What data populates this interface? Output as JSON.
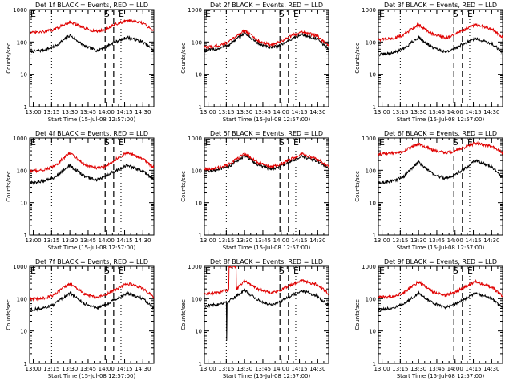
{
  "figure": {
    "xlabel": "Start Time (15-Jul-08 12:57:00)",
    "ylabel": "Counts/sec",
    "event_label": "Events",
    "lld_label": "LLD",
    "legend_prefix_black": "BLACK",
    "legend_prefix_red": "RED",
    "marker_start": "S",
    "marker_end": "E",
    "colors": {
      "events": "#000000",
      "lld": "#e00000",
      "axes": "#000000",
      "background": "#ffffff"
    }
  },
  "chart_data": {
    "type": "line",
    "x_unit": "minutes since 12:57:00",
    "xlim": [
      0,
      102
    ],
    "ylim": [
      1,
      1000
    ],
    "yscale": "log",
    "xticks": [
      3,
      18,
      33,
      48,
      63,
      78,
      93
    ],
    "xtick_labels": [
      "13:00",
      "13:15",
      "13:30",
      "13:45",
      "14:00",
      "14:15",
      "14:30"
    ],
    "yticks": [
      1,
      10,
      100,
      1000
    ],
    "ytick_labels": [
      "1",
      "10",
      "100",
      "1000"
    ],
    "dotted_lines_x": [
      18,
      75
    ],
    "dashed_lines_x": [
      62,
      69
    ],
    "S_x": 63,
    "E_x": 75,
    "panels": [
      {
        "title": "Det 1f BLACK = Events, RED = LLD",
        "series": [
          {
            "name": "Events",
            "x": [
              0,
              10,
              20,
              33,
              45,
              55,
              62,
              69,
              80,
              93,
              102
            ],
            "y": [
              50,
              55,
              70,
              160,
              75,
              55,
              70,
              95,
              140,
              100,
              55
            ]
          },
          {
            "name": "LLD",
            "x": [
              0,
              10,
              20,
              33,
              45,
              55,
              62,
              69,
              80,
              93,
              102
            ],
            "y": [
              190,
              200,
              240,
              420,
              260,
              210,
              240,
              330,
              470,
              380,
              220
            ]
          }
        ]
      },
      {
        "title": "Det 2f BLACK = Events, RED = LLD",
        "series": [
          {
            "name": "Events",
            "x": [
              0,
              10,
              20,
              33,
              45,
              55,
              62,
              69,
              80,
              93,
              102
            ],
            "y": [
              55,
              60,
              80,
              190,
              85,
              65,
              80,
              110,
              170,
              120,
              60
            ]
          },
          {
            "name": "LLD",
            "x": [
              0,
              10,
              20,
              33,
              45,
              55,
              62,
              69,
              80,
              93,
              102
            ],
            "y": [
              68,
              75,
              100,
              230,
              105,
              80,
              100,
              140,
              210,
              150,
              75
            ]
          }
        ]
      },
      {
        "title": "Det 3f BLACK = Events, RED = LLD",
        "series": [
          {
            "name": "Events",
            "x": [
              0,
              10,
              20,
              33,
              45,
              55,
              62,
              69,
              80,
              93,
              102
            ],
            "y": [
              40,
              45,
              60,
              140,
              65,
              48,
              60,
              85,
              130,
              90,
              48
            ]
          },
          {
            "name": "LLD",
            "x": [
              0,
              10,
              20,
              33,
              45,
              55,
              62,
              69,
              80,
              93,
              102
            ],
            "y": [
              120,
              125,
              160,
              350,
              170,
              135,
              160,
              230,
              340,
              250,
              140
            ]
          }
        ]
      },
      {
        "title": "Det 4f BLACK = Events, RED = LLD",
        "series": [
          {
            "name": "Events",
            "x": [
              0,
              10,
              20,
              33,
              45,
              55,
              62,
              69,
              80,
              93,
              102
            ],
            "y": [
              40,
              45,
              60,
              140,
              65,
              50,
              62,
              90,
              140,
              95,
              50
            ]
          },
          {
            "name": "LLD",
            "x": [
              0,
              10,
              20,
              33,
              45,
              55,
              62,
              69,
              80,
              93,
              102
            ],
            "y": [
              95,
              100,
              130,
              350,
              150,
              115,
              130,
              200,
              350,
              230,
              120
            ]
          }
        ]
      },
      {
        "title": "Det 5f BLACK = Events, RED = LLD",
        "series": [
          {
            "name": "Events",
            "x": [
              0,
              10,
              20,
              33,
              45,
              55,
              62,
              69,
              80,
              93,
              102
            ],
            "y": [
              95,
              100,
              130,
              280,
              140,
              110,
              130,
              175,
              270,
              190,
              110
            ]
          },
          {
            "name": "LLD",
            "x": [
              0,
              10,
              20,
              33,
              45,
              55,
              62,
              69,
              80,
              93,
              102
            ],
            "y": [
              110,
              115,
              150,
              330,
              165,
              125,
              150,
              205,
              320,
              220,
              125
            ]
          }
        ]
      },
      {
        "title": "Det 6f BLACK = Events, RED = LLD",
        "series": [
          {
            "name": "Events",
            "x": [
              0,
              10,
              20,
              33,
              45,
              55,
              62,
              69,
              80,
              93,
              102
            ],
            "y": [
              40,
              45,
              60,
              180,
              75,
              55,
              70,
              100,
              200,
              130,
              60
            ]
          },
          {
            "name": "LLD",
            "x": [
              0,
              10,
              20,
              33,
              45,
              55,
              62,
              69,
              80,
              93,
              102
            ],
            "y": [
              320,
              330,
              380,
              650,
              420,
              350,
              380,
              480,
              700,
              550,
              350
            ]
          }
        ]
      },
      {
        "title": "Det 7f BLACK = Events, RED = LLD",
        "series": [
          {
            "name": "Events",
            "x": [
              0,
              10,
              20,
              33,
              45,
              55,
              62,
              69,
              80,
              93,
              102
            ],
            "y": [
              45,
              50,
              65,
              150,
              70,
              52,
              65,
              90,
              145,
              100,
              50
            ]
          },
          {
            "name": "LLD",
            "x": [
              0,
              10,
              20,
              33,
              45,
              55,
              62,
              69,
              80,
              93,
              102
            ],
            "y": [
              95,
              100,
              130,
              300,
              140,
              110,
              130,
              180,
              300,
              210,
              110
            ]
          }
        ]
      },
      {
        "title": "Det 8f BLACK = Events, RED = LLD",
        "series": [
          {
            "name": "Events",
            "x": [
              0,
              10,
              18,
              18.3,
              18.6,
              20,
              33,
              45,
              55,
              62,
              69,
              80,
              93,
              102
            ],
            "y": [
              60,
              65,
              80,
              5,
              70,
              85,
              180,
              85,
              65,
              80,
              110,
              180,
              120,
              60
            ]
          },
          {
            "name": "LLD",
            "x": [
              0,
              10,
              18,
              20,
              20.3,
              26,
              26.3,
              33,
              45,
              55,
              62,
              69,
              80,
              93,
              102
            ],
            "y": [
              140,
              150,
              180,
              200,
              1000,
              1000,
              200,
              360,
              190,
              150,
              180,
              250,
              370,
              270,
              140
            ]
          }
        ]
      },
      {
        "title": "Det 9f BLACK = Events, RED = LLD",
        "series": [
          {
            "name": "Events",
            "x": [
              0,
              10,
              20,
              33,
              45,
              55,
              62,
              69,
              80,
              93,
              102
            ],
            "y": [
              45,
              50,
              65,
              150,
              70,
              55,
              65,
              90,
              150,
              100,
              50
            ]
          },
          {
            "name": "LLD",
            "x": [
              0,
              10,
              20,
              33,
              45,
              55,
              62,
              69,
              80,
              93,
              102
            ],
            "y": [
              110,
              115,
              150,
              330,
              160,
              125,
              150,
              210,
              330,
              230,
              120
            ]
          }
        ]
      }
    ]
  }
}
